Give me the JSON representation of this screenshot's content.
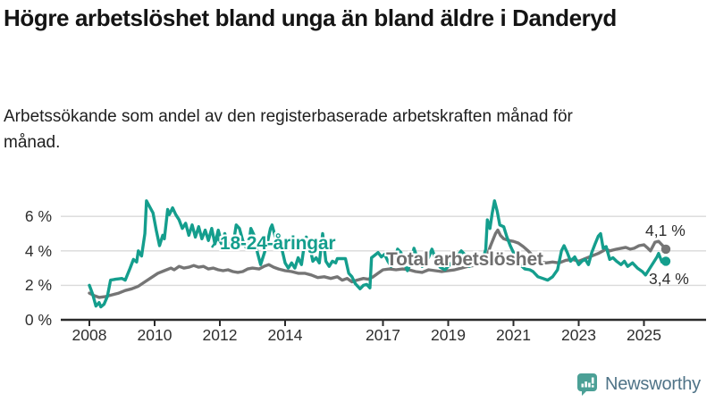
{
  "chart_data": {
    "type": "line",
    "title": "Högre arbetslöshet bland unga än bland äldre i Danderyd",
    "subtitle": "Arbetssökande som andel av den registerbaserade arbetskraften månad för månad.",
    "unit": "%",
    "grid": "horizontal",
    "legend": "inline-labels",
    "x_axis": [
      2008,
      2010,
      2012,
      2014,
      2017,
      2019,
      2021,
      2023,
      2025
    ],
    "y_axis": [
      {
        "value": 0,
        "label": "0 %"
      },
      {
        "value": 2,
        "label": "2 %"
      },
      {
        "value": 4,
        "label": "4 %"
      },
      {
        "value": 6,
        "label": "6 %"
      }
    ],
    "x_range": [
      2008.0,
      2025.67
    ],
    "y_range": [
      0,
      7.3
    ],
    "colors": {
      "grid": "#dadada",
      "axis": "#2a2a2a"
    },
    "series": [
      {
        "name": "Total arbetslöshet",
        "color": "#757575",
        "end_label": "4,1 %",
        "points": [
          [
            2008.0,
            1.55
          ],
          [
            2008.15,
            1.4
          ],
          [
            2008.3,
            1.3
          ],
          [
            2008.5,
            1.35
          ],
          [
            2008.7,
            1.45
          ],
          [
            2008.9,
            1.55
          ],
          [
            2009.1,
            1.7
          ],
          [
            2009.3,
            1.8
          ],
          [
            2009.5,
            1.95
          ],
          [
            2009.7,
            2.2
          ],
          [
            2009.9,
            2.45
          ],
          [
            2010.1,
            2.7
          ],
          [
            2010.3,
            2.85
          ],
          [
            2010.5,
            3.0
          ],
          [
            2010.6,
            2.9
          ],
          [
            2010.75,
            3.1
          ],
          [
            2010.9,
            3.0
          ],
          [
            2011.05,
            3.05
          ],
          [
            2011.2,
            3.15
          ],
          [
            2011.35,
            3.05
          ],
          [
            2011.5,
            3.1
          ],
          [
            2011.65,
            2.95
          ],
          [
            2011.8,
            3.0
          ],
          [
            2011.95,
            2.9
          ],
          [
            2012.1,
            2.85
          ],
          [
            2012.25,
            2.9
          ],
          [
            2012.4,
            2.8
          ],
          [
            2012.55,
            2.75
          ],
          [
            2012.7,
            2.8
          ],
          [
            2012.85,
            2.95
          ],
          [
            2013.0,
            3.0
          ],
          [
            2013.2,
            2.95
          ],
          [
            2013.35,
            3.1
          ],
          [
            2013.5,
            3.2
          ],
          [
            2013.65,
            3.05
          ],
          [
            2013.8,
            2.95
          ],
          [
            2014.0,
            2.85
          ],
          [
            2014.2,
            2.8
          ],
          [
            2014.4,
            2.7
          ],
          [
            2014.6,
            2.7
          ],
          [
            2014.8,
            2.6
          ],
          [
            2015.0,
            2.45
          ],
          [
            2015.2,
            2.5
          ],
          [
            2015.4,
            2.4
          ],
          [
            2015.6,
            2.5
          ],
          [
            2015.75,
            2.3
          ],
          [
            2015.9,
            2.4
          ],
          [
            2016.05,
            2.2
          ],
          [
            2016.2,
            2.3
          ],
          [
            2016.4,
            2.4
          ],
          [
            2016.55,
            2.35
          ],
          [
            2016.7,
            2.5
          ],
          [
            2016.85,
            2.7
          ],
          [
            2017.0,
            2.9
          ],
          [
            2017.2,
            2.95
          ],
          [
            2017.4,
            2.9
          ],
          [
            2017.6,
            2.95
          ],
          [
            2017.8,
            2.9
          ],
          [
            2018.0,
            2.8
          ],
          [
            2018.2,
            2.75
          ],
          [
            2018.4,
            2.9
          ],
          [
            2018.6,
            2.85
          ],
          [
            2018.8,
            2.8
          ],
          [
            2019.0,
            2.85
          ],
          [
            2019.2,
            2.9
          ],
          [
            2019.4,
            3.0
          ],
          [
            2019.6,
            3.1
          ],
          [
            2019.8,
            3.15
          ],
          [
            2020.0,
            3.3
          ],
          [
            2020.15,
            3.5
          ],
          [
            2020.3,
            4.3
          ],
          [
            2020.45,
            5.0
          ],
          [
            2020.52,
            5.2
          ],
          [
            2020.6,
            4.9
          ],
          [
            2020.7,
            4.7
          ],
          [
            2020.85,
            4.6
          ],
          [
            2021.0,
            4.55
          ],
          [
            2021.15,
            4.45
          ],
          [
            2021.3,
            4.25
          ],
          [
            2021.45,
            4.0
          ],
          [
            2021.55,
            3.8
          ],
          [
            2021.7,
            3.5
          ],
          [
            2021.85,
            3.35
          ],
          [
            2022.0,
            3.3
          ],
          [
            2022.2,
            3.35
          ],
          [
            2022.4,
            3.3
          ],
          [
            2022.6,
            3.45
          ],
          [
            2022.8,
            3.5
          ],
          [
            2023.0,
            3.4
          ],
          [
            2023.2,
            3.55
          ],
          [
            2023.4,
            3.7
          ],
          [
            2023.6,
            3.85
          ],
          [
            2023.84,
            4.1
          ],
          [
            2023.95,
            4.0
          ],
          [
            2024.16,
            4.1
          ],
          [
            2024.44,
            4.2
          ],
          [
            2024.58,
            4.1
          ],
          [
            2024.7,
            4.15
          ],
          [
            2024.85,
            4.3
          ],
          [
            2025.0,
            4.35
          ],
          [
            2025.12,
            4.15
          ],
          [
            2025.2,
            4.0
          ],
          [
            2025.34,
            4.5
          ],
          [
            2025.45,
            4.55
          ],
          [
            2025.55,
            4.35
          ],
          [
            2025.67,
            4.1
          ]
        ]
      },
      {
        "name": "18-24-åringar",
        "color": "#149e8d",
        "end_label": "3,4 %",
        "points": [
          [
            2008.0,
            2.0
          ],
          [
            2008.1,
            1.5
          ],
          [
            2008.2,
            0.8
          ],
          [
            2008.3,
            1.0
          ],
          [
            2008.35,
            0.75
          ],
          [
            2008.45,
            0.9
          ],
          [
            2008.55,
            1.35
          ],
          [
            2008.65,
            2.3
          ],
          [
            2008.8,
            2.35
          ],
          [
            2009.0,
            2.4
          ],
          [
            2009.1,
            2.3
          ],
          [
            2009.25,
            3.0
          ],
          [
            2009.35,
            3.5
          ],
          [
            2009.45,
            3.35
          ],
          [
            2009.5,
            4.0
          ],
          [
            2009.6,
            3.7
          ],
          [
            2009.7,
            5.0
          ],
          [
            2009.75,
            6.9
          ],
          [
            2009.85,
            6.55
          ],
          [
            2009.95,
            6.2
          ],
          [
            2010.05,
            5.2
          ],
          [
            2010.15,
            4.3
          ],
          [
            2010.25,
            4.9
          ],
          [
            2010.3,
            4.7
          ],
          [
            2010.4,
            6.4
          ],
          [
            2010.45,
            6.1
          ],
          [
            2010.55,
            6.5
          ],
          [
            2010.65,
            6.1
          ],
          [
            2010.75,
            5.8
          ],
          [
            2010.85,
            5.3
          ],
          [
            2010.95,
            5.6
          ],
          [
            2011.05,
            4.9
          ],
          [
            2011.15,
            5.5
          ],
          [
            2011.25,
            4.8
          ],
          [
            2011.35,
            5.4
          ],
          [
            2011.45,
            4.7
          ],
          [
            2011.55,
            5.2
          ],
          [
            2011.65,
            4.6
          ],
          [
            2011.75,
            5.3
          ],
          [
            2011.85,
            4.4
          ],
          [
            2011.95,
            5.2
          ],
          [
            2012.05,
            4.5
          ],
          [
            2012.15,
            5.0
          ],
          [
            2012.25,
            4.4
          ],
          [
            2012.4,
            4.3
          ],
          [
            2012.5,
            5.5
          ],
          [
            2012.6,
            5.3
          ],
          [
            2012.7,
            4.6
          ],
          [
            2012.8,
            4.2
          ],
          [
            2012.9,
            4.6
          ],
          [
            2012.95,
            5.3
          ],
          [
            2013.05,
            4.9
          ],
          [
            2013.15,
            3.9
          ],
          [
            2013.25,
            3.2
          ],
          [
            2013.35,
            3.8
          ],
          [
            2013.45,
            4.4
          ],
          [
            2013.55,
            5.3
          ],
          [
            2013.6,
            5.5
          ],
          [
            2013.7,
            4.8
          ],
          [
            2013.8,
            4.9
          ],
          [
            2013.9,
            4.1
          ],
          [
            2014.0,
            3.3
          ],
          [
            2014.1,
            3.0
          ],
          [
            2014.2,
            3.3
          ],
          [
            2014.3,
            3.0
          ],
          [
            2014.4,
            3.6
          ],
          [
            2014.5,
            3.2
          ],
          [
            2014.6,
            4.5
          ],
          [
            2014.65,
            4.8
          ],
          [
            2014.75,
            4.3
          ],
          [
            2014.85,
            3.4
          ],
          [
            2014.95,
            3.6
          ],
          [
            2015.05,
            3.3
          ],
          [
            2015.15,
            5.0
          ],
          [
            2015.25,
            3.4
          ],
          [
            2015.35,
            3.1
          ],
          [
            2015.45,
            3.4
          ],
          [
            2015.55,
            3.3
          ],
          [
            2015.6,
            3.55
          ],
          [
            2015.85,
            3.55
          ],
          [
            2015.95,
            2.7
          ],
          [
            2016.05,
            2.5
          ],
          [
            2016.15,
            2.1
          ],
          [
            2016.3,
            1.8
          ],
          [
            2016.4,
            2.0
          ],
          [
            2016.5,
            2.05
          ],
          [
            2016.6,
            1.85
          ],
          [
            2016.65,
            3.6
          ],
          [
            2016.75,
            3.75
          ],
          [
            2016.85,
            3.9
          ],
          [
            2016.95,
            3.65
          ],
          [
            2017.05,
            3.8
          ],
          [
            2017.15,
            3.4
          ],
          [
            2017.25,
            3.1
          ],
          [
            2017.35,
            3.5
          ],
          [
            2017.45,
            4.1
          ],
          [
            2017.55,
            3.9
          ],
          [
            2017.65,
            3.3
          ],
          [
            2017.75,
            2.85
          ],
          [
            2017.85,
            3.3
          ],
          [
            2017.95,
            4.15
          ],
          [
            2018.05,
            3.6
          ],
          [
            2018.2,
            3.1
          ],
          [
            2018.35,
            3.4
          ],
          [
            2018.5,
            4.1
          ],
          [
            2018.6,
            3.6
          ],
          [
            2018.75,
            3.05
          ],
          [
            2018.9,
            2.9
          ],
          [
            2019.05,
            3.2
          ],
          [
            2019.2,
            3.5
          ],
          [
            2019.4,
            4.0
          ],
          [
            2019.5,
            3.8
          ],
          [
            2019.65,
            3.1
          ],
          [
            2019.8,
            3.3
          ],
          [
            2019.95,
            3.25
          ],
          [
            2020.05,
            3.4
          ],
          [
            2020.15,
            4.1
          ],
          [
            2020.2,
            5.8
          ],
          [
            2020.28,
            5.3
          ],
          [
            2020.35,
            6.2
          ],
          [
            2020.42,
            6.9
          ],
          [
            2020.5,
            6.3
          ],
          [
            2020.58,
            5.5
          ],
          [
            2020.7,
            5.4
          ],
          [
            2020.8,
            4.8
          ],
          [
            2020.9,
            4.3
          ],
          [
            2021.0,
            3.9
          ],
          [
            2021.1,
            3.5
          ],
          [
            2021.2,
            3.2
          ],
          [
            2021.35,
            2.95
          ],
          [
            2021.5,
            2.9
          ],
          [
            2021.6,
            2.8
          ],
          [
            2021.75,
            2.5
          ],
          [
            2021.9,
            2.4
          ],
          [
            2022.05,
            2.3
          ],
          [
            2022.2,
            2.5
          ],
          [
            2022.35,
            2.9
          ],
          [
            2022.47,
            4.0
          ],
          [
            2022.55,
            4.3
          ],
          [
            2022.65,
            3.9
          ],
          [
            2022.75,
            3.4
          ],
          [
            2022.88,
            3.65
          ],
          [
            2023.0,
            3.2
          ],
          [
            2023.1,
            3.4
          ],
          [
            2023.2,
            3.5
          ],
          [
            2023.3,
            3.2
          ],
          [
            2023.4,
            3.9
          ],
          [
            2023.5,
            4.4
          ],
          [
            2023.6,
            4.85
          ],
          [
            2023.67,
            5.0
          ],
          [
            2023.75,
            4.15
          ],
          [
            2023.84,
            4.25
          ],
          [
            2023.95,
            3.5
          ],
          [
            2024.05,
            3.6
          ],
          [
            2024.16,
            3.4
          ],
          [
            2024.3,
            3.2
          ],
          [
            2024.4,
            3.4
          ],
          [
            2024.5,
            3.1
          ],
          [
            2024.65,
            3.3
          ],
          [
            2024.8,
            3.0
          ],
          [
            2024.95,
            2.8
          ],
          [
            2025.05,
            2.6
          ],
          [
            2025.15,
            2.9
          ],
          [
            2025.4,
            3.65
          ],
          [
            2025.45,
            3.85
          ],
          [
            2025.55,
            3.35
          ],
          [
            2025.67,
            3.4
          ]
        ]
      }
    ]
  },
  "footer": {
    "brand": "Newsworthy"
  }
}
